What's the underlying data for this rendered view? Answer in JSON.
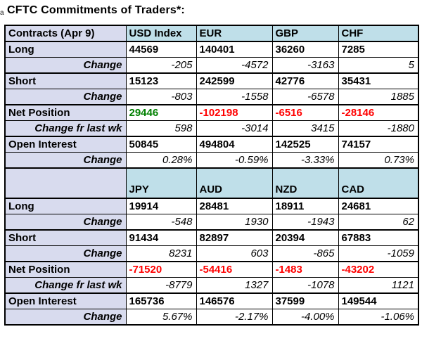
{
  "title": "CFTC Commitments of Traders*:",
  "title_mark": "a",
  "colors": {
    "header_bg": "#bfdfe9",
    "label_bg": "#d8dbee",
    "border": "#000000",
    "positive": "#008000",
    "negative": "#ff0000",
    "text": "#000000"
  },
  "chart_data": {
    "type": "table",
    "title": "CFTC Commitments of Traders*:",
    "row_labels": [
      "Long",
      "Change",
      "Short",
      "Change",
      "Net Position",
      "Change fr last wk",
      "Open Interest",
      "Change"
    ],
    "sections": [
      {
        "header": {
          "label": "Contracts (Apr 9)",
          "columns": [
            "USD Index",
            "EUR",
            "GBP",
            "CHF"
          ]
        },
        "rows": [
          {
            "label": "Long",
            "type": "main",
            "values": [
              "44569",
              "140401",
              "36260",
              "7285"
            ]
          },
          {
            "label": "Change",
            "type": "change",
            "values": [
              "-205",
              "-4572",
              "-3163",
              "5"
            ]
          },
          {
            "label": "Short",
            "type": "main",
            "values": [
              "15123",
              "242599",
              "42776",
              "35431"
            ]
          },
          {
            "label": "Change",
            "type": "change",
            "values": [
              "-803",
              "-1558",
              "-6578",
              "1885"
            ]
          },
          {
            "label": "Net Position",
            "type": "main",
            "values": [
              "29446",
              "-102198",
              "-6516",
              "-28146"
            ],
            "value_colors": [
              "positive",
              "negative",
              "negative",
              "negative"
            ]
          },
          {
            "label": "Change fr last wk",
            "type": "change",
            "values": [
              "598",
              "-3014",
              "3415",
              "-1880"
            ]
          },
          {
            "label": "Open Interest",
            "type": "main",
            "values": [
              "50845",
              "494804",
              "142525",
              "74157"
            ]
          },
          {
            "label": "Change",
            "type": "change",
            "values": [
              "0.28%",
              "-0.59%",
              "-3.33%",
              "0.73%"
            ]
          }
        ]
      },
      {
        "header": {
          "label": "",
          "columns": [
            "JPY",
            "AUD",
            "NZD",
            "CAD"
          ]
        },
        "rows": [
          {
            "label": "Long",
            "type": "main",
            "values": [
              "19914",
              "28481",
              "18911",
              "24681"
            ]
          },
          {
            "label": "Change",
            "type": "change",
            "values": [
              "-548",
              "1930",
              "-1943",
              "62"
            ]
          },
          {
            "label": "Short",
            "type": "main",
            "values": [
              "91434",
              "82897",
              "20394",
              "67883"
            ]
          },
          {
            "label": "Change",
            "type": "change",
            "values": [
              "8231",
              "603",
              "-865",
              "-1059"
            ]
          },
          {
            "label": "Net Position",
            "type": "main",
            "values": [
              "-71520",
              "-54416",
              "-1483",
              "-43202"
            ],
            "value_colors": [
              "negative",
              "negative",
              "negative",
              "negative"
            ]
          },
          {
            "label": "Change fr last wk",
            "type": "change",
            "values": [
              "-8779",
              "1327",
              "-1078",
              "1121"
            ]
          },
          {
            "label": "Open Interest",
            "type": "main",
            "values": [
              "165736",
              "146576",
              "37599",
              "149544"
            ]
          },
          {
            "label": "Change",
            "type": "change",
            "values": [
              "5.67%",
              "-2.17%",
              "-4.00%",
              "-1.06%"
            ]
          }
        ]
      }
    ]
  }
}
